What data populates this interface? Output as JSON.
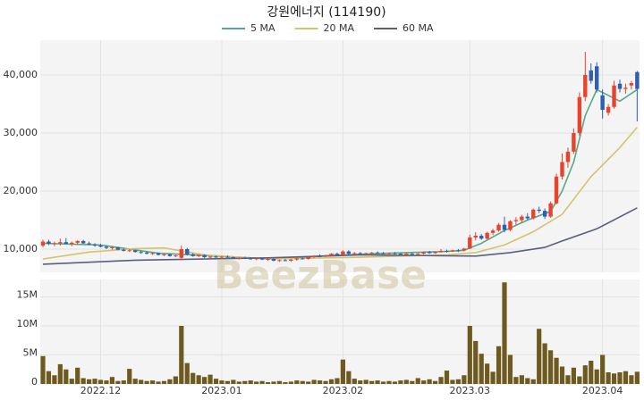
{
  "chart_data": [
    {
      "type": "candlestick",
      "title": "강원에너지 (114190)",
      "up_color": "#e8432d",
      "down_color": "#2f5fb3",
      "ylim": [
        6000,
        46000
      ],
      "yticks": [
        {
          "value": 10000,
          "label": "10,000"
        },
        {
          "value": 20000,
          "label": "20,000"
        },
        {
          "value": 30000,
          "label": "30,000"
        },
        {
          "value": 40000,
          "label": "40,000"
        }
      ],
      "grid": true,
      "watermark": "BeezBase",
      "open": [
        10600,
        11300,
        10900,
        11000,
        11200,
        10900,
        11100,
        11400,
        11000,
        10800,
        10600,
        10400,
        10200,
        10300,
        9900,
        9700,
        9800,
        9500,
        9400,
        9200,
        9300,
        9000,
        9100,
        8800,
        8500,
        10000,
        9100,
        8800,
        9000,
        8600,
        8700,
        8600,
        8700,
        8600,
        8400,
        8500,
        8400,
        8300,
        8400,
        8200,
        8300,
        8000,
        8100,
        8000,
        8200,
        8400,
        8300,
        8600,
        8800,
        8700,
        8900,
        9200,
        9000,
        9600,
        9200,
        9300,
        9200,
        9300,
        9400,
        9300,
        9200,
        9300,
        9200,
        9000,
        9200,
        9100,
        9200,
        9500,
        9300,
        9500,
        9700,
        9600,
        9800,
        9800,
        10100,
        12000,
        12300,
        11800,
        12800,
        13200,
        14200,
        13300,
        14800,
        15000,
        15600,
        15300,
        16800,
        16600,
        15600,
        17900,
        22500,
        25000,
        26800,
        30000,
        36200,
        40800,
        41500,
        36500,
        33500,
        34500,
        38500,
        37600,
        38200,
        40500
      ],
      "high": [
        11600,
        11600,
        11300,
        11800,
        11900,
        11300,
        11500,
        11600,
        11300,
        11000,
        10900,
        10600,
        10500,
        10400,
        10100,
        10000,
        9900,
        9700,
        9600,
        9400,
        9400,
        9200,
        9200,
        9000,
        10600,
        10200,
        9300,
        9100,
        9100,
        8800,
        8900,
        8800,
        8900,
        8700,
        8600,
        8700,
        8600,
        8500,
        8500,
        8400,
        8400,
        8200,
        8300,
        8300,
        8500,
        8600,
        8700,
        8900,
        9100,
        9000,
        9300,
        9400,
        9800,
        9800,
        9500,
        9500,
        9400,
        9500,
        9600,
        9500,
        9400,
        9500,
        9300,
        9300,
        9400,
        9300,
        9600,
        9700,
        9600,
        10000,
        9900,
        9900,
        10000,
        10200,
        12500,
        12900,
        12600,
        13000,
        13500,
        14500,
        15600,
        15000,
        15500,
        15900,
        16200,
        17000,
        17300,
        17000,
        18200,
        23000,
        26500,
        27500,
        30800,
        37000,
        44000,
        42000,
        42200,
        37500,
        35000,
        39000,
        39200,
        38500,
        39000,
        40700
      ],
      "low": [
        10300,
        10700,
        10500,
        10600,
        10800,
        10500,
        10800,
        10900,
        10700,
        10400,
        10300,
        10000,
        9900,
        9800,
        9600,
        9500,
        9400,
        9200,
        9100,
        9000,
        8900,
        8800,
        8700,
        8600,
        8100,
        8900,
        8700,
        8600,
        8500,
        8400,
        8500,
        8300,
        8500,
        8300,
        8200,
        8300,
        8200,
        8100,
        8100,
        8000,
        7900,
        7800,
        7900,
        7800,
        8000,
        8200,
        8200,
        8500,
        8600,
        8600,
        8800,
        8900,
        8900,
        9000,
        9000,
        9100,
        9000,
        9100,
        9200,
        9100,
        9000,
        9100,
        8900,
        8900,
        9000,
        8900,
        9100,
        9200,
        9200,
        9400,
        9400,
        9500,
        9500,
        9600,
        10000,
        11500,
        11600,
        11700,
        12400,
        13000,
        12900,
        13100,
        14200,
        14600,
        15000,
        15100,
        16200,
        15200,
        15400,
        17700,
        22000,
        24000,
        26400,
        29500,
        35500,
        38500,
        37000,
        32500,
        33000,
        34200,
        37000,
        36800,
        37500,
        32000
      ],
      "close": [
        11300,
        10900,
        11000,
        11200,
        10900,
        11100,
        11400,
        11000,
        10800,
        10600,
        10400,
        10200,
        10300,
        9900,
        9700,
        9800,
        9500,
        9400,
        9200,
        9300,
        9000,
        9100,
        8800,
        8900,
        10000,
        9100,
        8800,
        9000,
        8600,
        8700,
        8600,
        8700,
        8600,
        8400,
        8500,
        8400,
        8300,
        8400,
        8200,
        8300,
        8000,
        8100,
        8000,
        8200,
        8400,
        8300,
        8600,
        8800,
        8700,
        8900,
        9200,
        9000,
        9600,
        9200,
        9300,
        9200,
        9300,
        9400,
        9300,
        9200,
        9300,
        9200,
        9000,
        9200,
        9100,
        9200,
        9500,
        9300,
        9500,
        9700,
        9600,
        9800,
        9700,
        10100,
        12000,
        12300,
        11800,
        12800,
        13200,
        14200,
        13300,
        14800,
        15000,
        15600,
        15300,
        16800,
        16600,
        15600,
        17900,
        22500,
        25000,
        26800,
        30000,
        36200,
        40000,
        39000,
        37500,
        34000,
        34500,
        38200,
        37600,
        37800,
        38600,
        37600
      ],
      "series": [
        {
          "name": "5 MA",
          "color": "#5aa88a",
          "x": [
            0,
            10,
            20,
            30,
            40,
            50,
            60,
            70,
            73,
            76,
            80,
            84,
            88,
            90,
            92,
            94,
            96,
            98,
            100,
            103
          ],
          "values": [
            11000,
            10700,
            9300,
            8800,
            8300,
            8900,
            9300,
            9600,
            9800,
            11000,
            13200,
            15000,
            16500,
            20000,
            25000,
            33000,
            37500,
            36500,
            35500,
            37500
          ]
        },
        {
          "name": "20 MA",
          "color": "#d6c26c",
          "x": [
            0,
            8,
            16,
            21,
            28,
            39,
            55,
            70,
            75,
            80,
            85,
            90,
            95,
            100,
            103
          ],
          "values": [
            8300,
            9500,
            10100,
            10200,
            9000,
            8300,
            8600,
            9000,
            9400,
            10700,
            13000,
            16000,
            22500,
            27500,
            31000
          ]
        },
        {
          "name": "60 MA",
          "color": "#5a5f80",
          "x": [
            0,
            16,
            39,
            55,
            75,
            81,
            87,
            90,
            96,
            103
          ],
          "values": [
            7400,
            8100,
            8500,
            9000,
            8800,
            9400,
            10300,
            11400,
            13500,
            17100
          ]
        }
      ]
    },
    {
      "type": "bar",
      "color": "#6e5a1e",
      "ylim": [
        0,
        18000000
      ],
      "yticks": [
        0,
        {
          "value": 5000000,
          "label": "5M"
        },
        {
          "value": 10000000,
          "label": "10M"
        },
        {
          "value": 15000000,
          "label": "15M"
        }
      ],
      "grid": true,
      "categories": [
        null,
        null,
        null,
        null,
        null,
        null,
        null,
        null,
        null,
        null,
        "2022.12",
        null,
        null,
        null,
        null,
        null,
        null,
        null,
        null,
        null,
        null,
        null,
        null,
        null,
        null,
        null,
        null,
        null,
        null,
        null,
        null,
        "2023.01",
        null,
        null,
        null,
        null,
        null,
        null,
        null,
        null,
        null,
        null,
        null,
        null,
        null,
        null,
        null,
        null,
        null,
        null,
        null,
        null,
        "2023.02",
        null,
        null,
        null,
        null,
        null,
        null,
        null,
        null,
        null,
        null,
        null,
        null,
        null,
        null,
        null,
        null,
        null,
        null,
        null,
        null,
        null,
        "2023.03",
        null,
        null,
        null,
        null,
        null,
        null,
        null,
        null,
        null,
        null,
        null,
        null,
        null,
        null,
        null,
        null,
        null,
        null,
        null,
        null,
        null,
        null,
        "2023.04",
        null,
        null,
        null,
        null,
        null,
        null
      ],
      "values": [
        4800000,
        2200000,
        1500000,
        3400000,
        2500000,
        900000,
        2800000,
        1000000,
        800000,
        900000,
        700000,
        600000,
        1200000,
        500000,
        600000,
        2600000,
        900000,
        700000,
        500000,
        600000,
        400000,
        500000,
        800000,
        1300000,
        10000000,
        3600000,
        1900000,
        1500000,
        1200000,
        1600000,
        900000,
        600000,
        500000,
        700000,
        400000,
        500000,
        600000,
        400000,
        500000,
        300000,
        400000,
        500000,
        300000,
        400000,
        600000,
        500000,
        400000,
        700000,
        600000,
        500000,
        800000,
        1000000,
        4200000,
        2200000,
        900000,
        600000,
        700000,
        500000,
        600000,
        400000,
        500000,
        400000,
        600000,
        700000,
        500000,
        1000000,
        600000,
        800000,
        500000,
        1200000,
        2300000,
        700000,
        800000,
        1500000,
        10000000,
        7400000,
        5200000,
        3500000,
        2100000,
        6500000,
        17500000,
        5000000,
        1200000,
        1500000,
        1000000,
        800000,
        9500000,
        7000000,
        5800000,
        4500000,
        3000000,
        1500000,
        2800000,
        1300000,
        3200000,
        4000000,
        2500000,
        5000000,
        2000000,
        1800000,
        2000000,
        2200000,
        1500000,
        2100000
      ]
    }
  ]
}
